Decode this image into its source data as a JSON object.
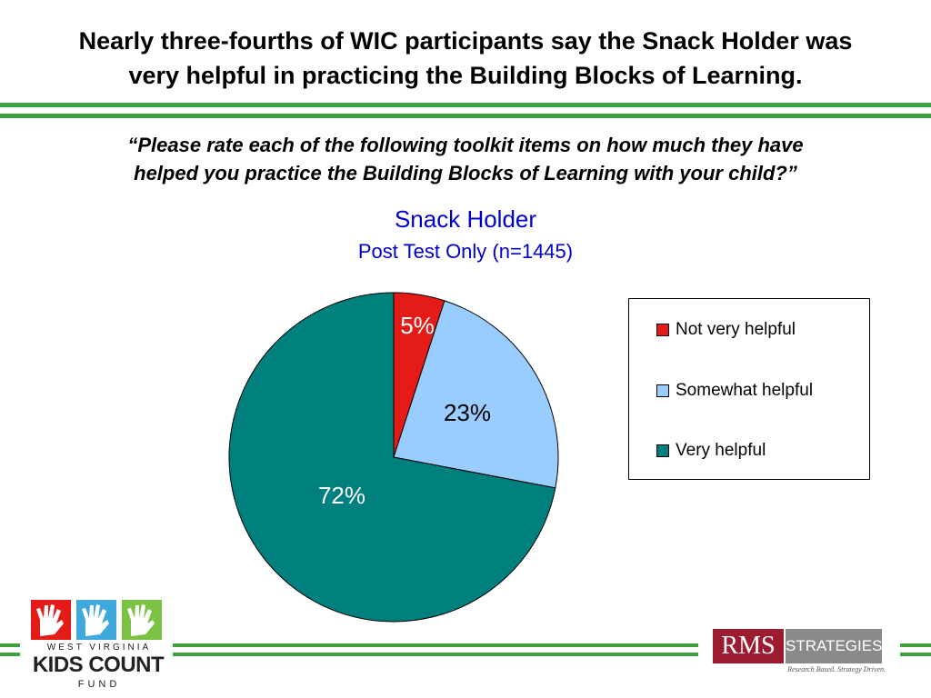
{
  "slide": {
    "title_line1": "Nearly three-fourths of WIC participants say the Snack Holder was",
    "title_line2": "very helpful in practicing the Building Blocks of Learning.",
    "question_line1": "“Please rate each of the following toolkit items on how much they have",
    "question_line2": "helped you practice the Building Blocks of Learning with your child?”"
  },
  "chart_data": {
    "type": "pie",
    "title": "Snack Holder",
    "subtitle": "Post Test Only (n=1445)",
    "categories": [
      "Not very helpful",
      "Somewhat helpful",
      "Very helpful"
    ],
    "values": [
      5,
      23,
      72
    ],
    "labels": [
      "5%",
      "23%",
      "72%"
    ],
    "colors": [
      "#e41b17",
      "#99ccff",
      "#007f7f"
    ],
    "label_colors": [
      "#ffffff",
      "#000000",
      "#ffffff"
    ],
    "legend_placement": "right"
  },
  "footer": {
    "kids_count_top": "WEST VIRGINIA",
    "kids_count_mid": "KIDS COUNT",
    "kids_count_bottom": "FUND",
    "rms_name": "RMS",
    "rms_strategies": "STRATEGIES",
    "rms_tagline": "Research Based. Strategy Driven."
  }
}
